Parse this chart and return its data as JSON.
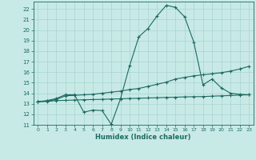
{
  "xlabel": "Humidex (Indice chaleur)",
  "bg_color": "#c8eae7",
  "grid_color": "#a8d4d0",
  "line_color": "#1a6b60",
  "xlim": [
    -0.5,
    23.5
  ],
  "ylim": [
    11,
    22.7
  ],
  "xticks": [
    0,
    1,
    2,
    3,
    4,
    5,
    6,
    7,
    8,
    9,
    10,
    11,
    12,
    13,
    14,
    15,
    16,
    17,
    18,
    19,
    20,
    21,
    22,
    23
  ],
  "yticks": [
    11,
    12,
    13,
    14,
    15,
    16,
    17,
    18,
    19,
    20,
    21,
    22
  ],
  "line1_x": [
    0,
    1,
    2,
    3,
    4,
    5,
    6,
    7,
    8,
    9,
    10,
    11,
    12,
    13,
    14,
    15,
    16,
    17,
    18,
    19,
    20,
    21,
    22,
    23
  ],
  "line1_y": [
    13.2,
    13.3,
    13.5,
    13.85,
    13.85,
    12.2,
    12.4,
    12.35,
    11.05,
    13.45,
    16.6,
    19.35,
    20.15,
    21.35,
    22.35,
    22.15,
    21.25,
    18.85,
    14.8,
    15.35,
    14.5,
    14.0,
    13.9,
    13.85
  ],
  "line2_x": [
    0,
    1,
    2,
    3,
    4,
    5,
    6,
    7,
    8,
    9,
    10,
    11,
    12,
    13,
    14,
    15,
    16,
    17,
    18,
    19,
    20,
    21,
    22,
    23
  ],
  "line2_y": [
    13.2,
    13.25,
    13.4,
    13.75,
    13.8,
    13.85,
    13.9,
    14.0,
    14.1,
    14.2,
    14.35,
    14.45,
    14.65,
    14.85,
    15.05,
    15.35,
    15.5,
    15.65,
    15.75,
    15.85,
    15.95,
    16.1,
    16.3,
    16.55
  ],
  "line3_x": [
    0,
    1,
    2,
    3,
    4,
    5,
    6,
    7,
    8,
    9,
    10,
    11,
    12,
    13,
    14,
    15,
    16,
    17,
    18,
    19,
    20,
    21,
    22,
    23
  ],
  "line3_y": [
    13.2,
    13.22,
    13.3,
    13.32,
    13.35,
    13.38,
    13.4,
    13.42,
    13.45,
    13.47,
    13.5,
    13.52,
    13.55,
    13.57,
    13.6,
    13.62,
    13.65,
    13.67,
    13.68,
    13.72,
    13.75,
    13.78,
    13.82,
    13.85
  ]
}
